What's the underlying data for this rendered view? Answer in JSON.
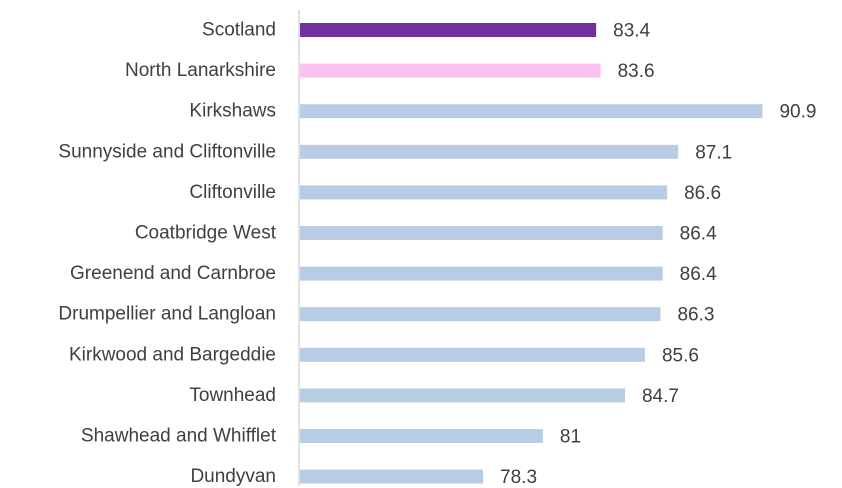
{
  "chart_data": {
    "type": "bar",
    "orientation": "horizontal",
    "categories": [
      "Scotland",
      "North Lanarkshire",
      "Kirkshaws",
      "Sunnyside and Cliftonville",
      "Cliftonville",
      "Coatbridge West",
      "Greenend and Carnbroe",
      "Drumpellier and Langloan",
      "Kirkwood and Bargeddie",
      "Townhead",
      "Shawhead and Whifflet",
      "Dundyvan"
    ],
    "values": [
      83.4,
      83.6,
      90.9,
      87.1,
      86.6,
      86.4,
      86.4,
      86.3,
      85.6,
      84.7,
      81,
      78.3
    ],
    "value_labels": [
      "83.4",
      "83.6",
      "90.9",
      "87.1",
      "86.6",
      "86.4",
      "86.4",
      "86.3",
      "85.6",
      "84.7",
      "81",
      "78.3"
    ],
    "colors": [
      "#7030a0",
      "#f9c2f0",
      "#b8cce4",
      "#b8cce4",
      "#b8cce4",
      "#b8cce4",
      "#b8cce4",
      "#b8cce4",
      "#b8cce4",
      "#b8cce4",
      "#b8cce4",
      "#b8cce4"
    ],
    "xlim": [
      70,
      91.6
    ],
    "title": "",
    "xlabel": "",
    "ylabel": "",
    "grid": false,
    "legend": "none"
  }
}
